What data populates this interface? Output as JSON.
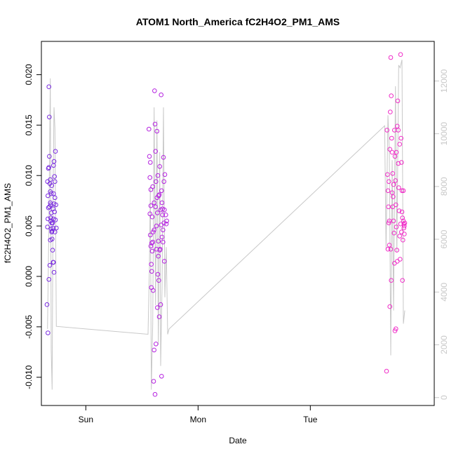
{
  "chart_data": {
    "type": "scatter",
    "title": "ATOM1 North_America fC2H4O2_PM1_AMS",
    "xlabel": "Date",
    "ylabel": "fC2H4O2_PM1_AMS",
    "x_ticks": [
      {
        "label": "Sun",
        "value": 0
      },
      {
        "label": "Mon",
        "value": 24
      },
      {
        "label": "Tue",
        "value": 48
      }
    ],
    "xlim": [
      -9.5,
      74.5
    ],
    "ylim": [
      -0.0128,
      0.0233
    ],
    "y_ticks": [
      -0.01,
      -0.005,
      0.0,
      0.005,
      0.01,
      0.015,
      0.02
    ],
    "y_tick_labels": [
      "-0.010",
      "-0.005",
      "0.000",
      "0.005",
      "0.010",
      "0.015",
      "0.020"
    ],
    "y2lim": [
      -300,
      13500
    ],
    "y2_ticks": [
      0,
      2000,
      4000,
      6000,
      8000,
      10000,
      12000
    ],
    "y2_tick_labels": [
      "0",
      "2000",
      "4000",
      "6000",
      "8000",
      "10000",
      "12000"
    ],
    "colors": {
      "seg1": "#7a2be0",
      "seg2": "#b522e0",
      "seg3": "#f02ec8",
      "altitude_line": "#c8c8c8"
    },
    "series": [
      {
        "color_key": "seg1",
        "points": [
          [
            -8.3,
            -0.0028
          ],
          [
            -8.2,
            0.0094
          ],
          [
            -8.1,
            0.008
          ],
          [
            -8.0,
            0.0107
          ],
          [
            -8.0,
            0.0068
          ],
          [
            -8.1,
            0.0057
          ],
          [
            -8.2,
            0.0049
          ],
          [
            -7.9,
            0.0108
          ],
          [
            -7.9,
            0.0188
          ],
          [
            -7.8,
            0.0158
          ],
          [
            -7.8,
            0.0119
          ],
          [
            -7.7,
            0.0092
          ],
          [
            -7.6,
            0.0084
          ],
          [
            -7.6,
            0.0073
          ],
          [
            -7.5,
            0.0071
          ],
          [
            -7.5,
            0.0055
          ],
          [
            -7.4,
            0.0082
          ],
          [
            -7.4,
            0.0063
          ],
          [
            -7.3,
            0.0053
          ],
          [
            -7.3,
            0.0044
          ],
          [
            -7.2,
            0.0037
          ],
          [
            -7.1,
            0.0026
          ],
          [
            -7.0,
            0.0014
          ],
          [
            -6.9,
            0.011
          ],
          [
            -6.9,
            0.0082
          ],
          [
            -6.8,
            0.0114
          ],
          [
            -6.8,
            0.0072
          ],
          [
            -6.7,
            0.0064
          ],
          [
            -6.6,
            0.0094
          ],
          [
            -6.6,
            0.0078
          ],
          [
            -6.5,
            0.0124
          ],
          [
            -6.5,
            0.0056
          ],
          [
            -6.4,
            0.0071
          ],
          [
            -6.3,
            0.0048
          ],
          [
            -7.6,
            0.0036
          ],
          [
            -7.7,
            0.0011
          ],
          [
            -7.9,
            -0.0003
          ],
          [
            -8.1,
            -0.0056
          ],
          [
            -7.2,
            0.0045
          ],
          [
            -7.0,
            0.0048
          ],
          [
            -6.8,
            0.0004
          ],
          [
            -6.9,
            0.0014
          ],
          [
            -7.3,
            0.009
          ],
          [
            -7.5,
            0.0058
          ],
          [
            -7.0,
            0.0067
          ],
          [
            -6.7,
            0.0099
          ],
          [
            -6.6,
            0.0044
          ],
          [
            -7.1,
            0.0053
          ],
          [
            -7.4,
            0.0047
          ],
          [
            -7.8,
            0.0069
          ],
          [
            -7.6,
            0.0096
          ],
          [
            -6.9,
            0.0057
          ]
        ]
      },
      {
        "color_key": "seg2",
        "points": [
          [
            13.5,
            0.0146
          ],
          [
            13.6,
            0.0119
          ],
          [
            13.7,
            0.0098
          ],
          [
            13.8,
            0.0113
          ],
          [
            13.7,
            0.0062
          ],
          [
            13.8,
            0.0041
          ],
          [
            13.9,
            0.007
          ],
          [
            13.9,
            0.003
          ],
          [
            14.0,
            0.0012
          ],
          [
            14.1,
            0.0005
          ],
          [
            14.0,
            -0.0011
          ],
          [
            14.2,
            0.0025
          ],
          [
            14.3,
            0.0089
          ],
          [
            14.3,
            0.0034
          ],
          [
            14.4,
            -0.0014
          ],
          [
            14.5,
            -0.0104
          ],
          [
            14.6,
            0.0073
          ],
          [
            14.7,
            0.0184
          ],
          [
            14.8,
            0.0151
          ],
          [
            14.9,
            0.0124
          ],
          [
            14.9,
            0.0069
          ],
          [
            15.0,
            0.0094
          ],
          [
            15.1,
            0.005
          ],
          [
            15.2,
            0.0144
          ],
          [
            15.3,
            0.0063
          ],
          [
            15.4,
            0.01
          ],
          [
            15.5,
            0.0035
          ],
          [
            15.6,
            0.008
          ],
          [
            15.7,
            0.0081
          ],
          [
            15.8,
            0.0109
          ],
          [
            16.0,
            0.0066
          ],
          [
            16.1,
            0.018
          ],
          [
            16.2,
            0.0085
          ],
          [
            16.3,
            0.0039
          ],
          [
            16.4,
            0.0067
          ],
          [
            16.5,
            0.0034
          ],
          [
            16.6,
            0.0118
          ],
          [
            16.7,
            0.0053
          ],
          [
            16.8,
            0.0066
          ],
          [
            16.9,
            0.0101
          ],
          [
            17.1,
            0.0061
          ],
          [
            17.2,
            0.0052
          ],
          [
            17.3,
            0.0055
          ],
          [
            14.6,
            -0.0073
          ],
          [
            14.8,
            -0.0117
          ],
          [
            15.0,
            -0.0067
          ],
          [
            15.3,
            -0.0031
          ],
          [
            15.5,
            0.002
          ],
          [
            15.7,
            -0.004
          ],
          [
            16.0,
            -0.0028
          ],
          [
            16.2,
            -0.0099
          ],
          [
            16.5,
            0.0046
          ],
          [
            16.8,
            0.0015
          ],
          [
            15.1,
            0.0027
          ],
          [
            14.2,
            0.0059
          ],
          [
            13.9,
            0.0086
          ],
          [
            15.9,
            0.0027
          ],
          [
            16.4,
            0.0061
          ],
          [
            16.7,
            0.0094
          ],
          [
            15.4,
            0.0002
          ],
          [
            14.4,
            0.0044
          ],
          [
            15.8,
            0.0026
          ],
          [
            16.1,
            0.0051
          ],
          [
            14.6,
            0.0046
          ],
          [
            15.2,
            0.0078
          ],
          [
            16.3,
            0.0073
          ],
          [
            15.6,
            -0.0004
          ],
          [
            14.1,
            0.0033
          ]
        ]
      },
      {
        "color_key": "seg3",
        "points": [
          [
            64.3,
            -0.0094
          ],
          [
            64.4,
            0.0145
          ],
          [
            64.5,
            0.0101
          ],
          [
            64.6,
            0.0085
          ],
          [
            64.7,
            0.0069
          ],
          [
            64.8,
            0.0053
          ],
          [
            64.9,
            0.0031
          ],
          [
            65.0,
            0.0126
          ],
          [
            65.1,
            0.0163
          ],
          [
            65.2,
            0.0217
          ],
          [
            65.3,
            0.0179
          ],
          [
            65.4,
            0.0137
          ],
          [
            65.5,
            0.0123
          ],
          [
            65.6,
            0.0102
          ],
          [
            65.7,
            0.0079
          ],
          [
            65.8,
            0.0055
          ],
          [
            65.9,
            0.0043
          ],
          [
            66.0,
            0.0145
          ],
          [
            66.1,
            0.0119
          ],
          [
            66.2,
            0.0095
          ],
          [
            66.3,
            0.0071
          ],
          [
            66.4,
            0.0049
          ],
          [
            66.5,
            0.0026
          ],
          [
            66.6,
            0.0149
          ],
          [
            66.7,
            0.0174
          ],
          [
            66.8,
            0.0112
          ],
          [
            66.9,
            0.0088
          ],
          [
            67.0,
            0.0065
          ],
          [
            67.1,
            0.004
          ],
          [
            67.2,
            0.0017
          ],
          [
            67.3,
            0.022
          ],
          [
            67.4,
            0.0137
          ],
          [
            67.5,
            0.0113
          ],
          [
            67.6,
            0.0085
          ],
          [
            67.7,
            0.0058
          ],
          [
            67.8,
            0.0036
          ],
          [
            67.9,
            0.0055
          ],
          [
            68.0,
            0.0052
          ],
          [
            68.1,
            0.005
          ],
          [
            68.2,
            0.0053
          ],
          [
            65.0,
            -0.003
          ],
          [
            65.3,
            -0.0004
          ],
          [
            66.3,
            -0.0052
          ],
          [
            66.0,
            0.0013
          ],
          [
            65.6,
            0.0069
          ],
          [
            67.5,
            0.0044
          ],
          [
            67.9,
            0.0085
          ],
          [
            64.6,
            0.0027
          ],
          [
            65.8,
            0.0091
          ],
          [
            66.6,
            0.0015
          ],
          [
            67.3,
            0.0052
          ],
          [
            68.0,
            0.0048
          ],
          [
            64.9,
            0.0055
          ],
          [
            65.5,
            0.0083
          ],
          [
            66.8,
            0.0145
          ],
          [
            67.1,
            0.0131
          ],
          [
            66.1,
            -0.0054
          ],
          [
            67.7,
            -0.0004
          ],
          [
            65.2,
            0.0027
          ],
          [
            67.6,
            0.0064
          ],
          [
            68.1,
            0.0042
          ],
          [
            64.8,
            0.0094
          ],
          [
            66.4,
            0.0123
          ]
        ]
      }
    ],
    "altitude_line": {
      "points": [
        [
          -8.2,
          2600
        ],
        [
          -7.9,
          6500
        ],
        [
          -7.6,
          12100
        ],
        [
          -7.4,
          1800
        ],
        [
          -7.2,
          300
        ],
        [
          -7.0,
          8000
        ],
        [
          -6.8,
          11000
        ],
        [
          -6.6,
          10200
        ],
        [
          -6.3,
          2700
        ],
        [
          13.3,
          2400
        ],
        [
          13.6,
          5000
        ],
        [
          13.8,
          8000
        ],
        [
          14.0,
          300
        ],
        [
          14.3,
          2800
        ],
        [
          14.6,
          11000
        ],
        [
          14.9,
          3500
        ],
        [
          15.2,
          10500
        ],
        [
          15.5,
          2000
        ],
        [
          15.8,
          9300
        ],
        [
          16.0,
          1200
        ],
        [
          16.3,
          4200
        ],
        [
          16.6,
          11000
        ],
        [
          16.9,
          3800
        ],
        [
          17.2,
          5700
        ],
        [
          17.5,
          2400
        ],
        [
          17.8,
          2600
        ],
        [
          63.9,
          10300
        ],
        [
          64.2,
          5600
        ],
        [
          64.6,
          10700
        ],
        [
          64.9,
          9300
        ],
        [
          65.2,
          1600
        ],
        [
          65.5,
          9000
        ],
        [
          65.8,
          3300
        ],
        [
          66.2,
          11800
        ],
        [
          66.5,
          5500
        ],
        [
          66.9,
          12600
        ],
        [
          67.2,
          12500
        ],
        [
          67.6,
          12800
        ],
        [
          67.9,
          2800
        ],
        [
          68.2,
          3300
        ]
      ]
    }
  }
}
